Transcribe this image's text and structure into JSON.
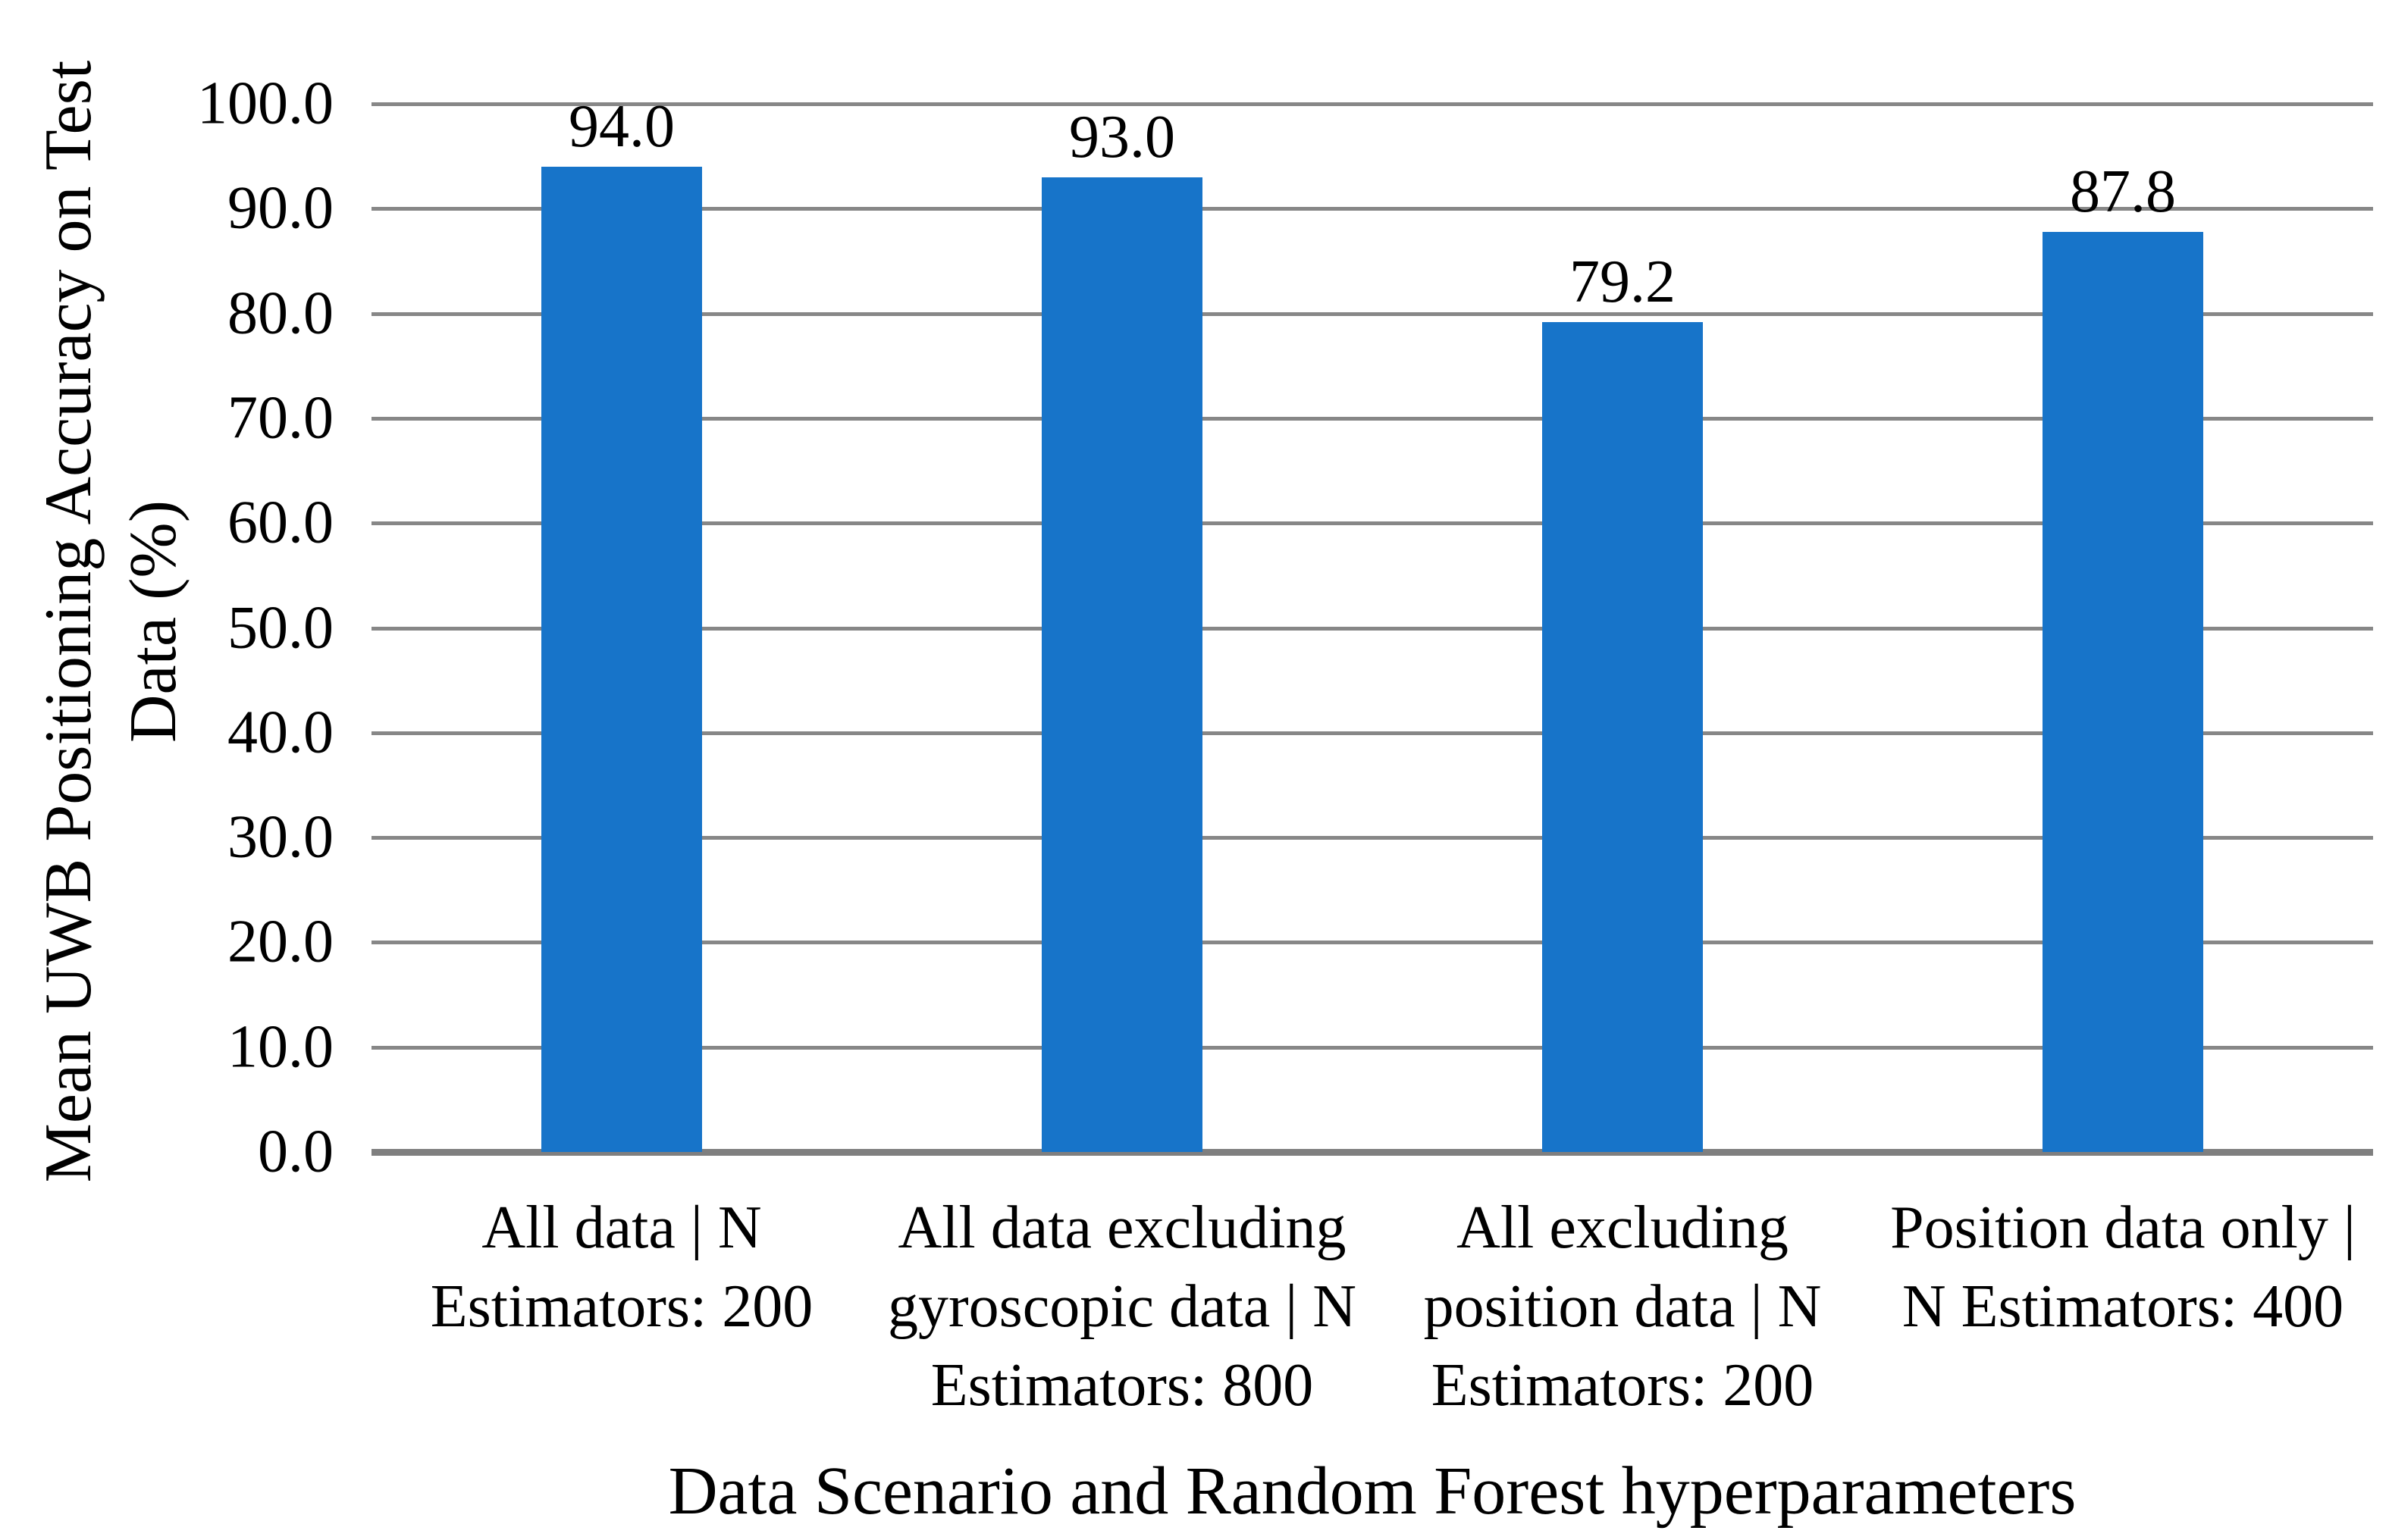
{
  "chart_data": {
    "type": "bar",
    "title": "",
    "xlabel": "Data Scenario and Random Forest hyperparameters",
    "ylabel": "Mean UWB Positioning Accuracy on Test Data (%)",
    "ylabel_lines": [
      "Mean UWB Positioning Accuracy on Test",
      "Data (%)"
    ],
    "ylim": [
      0,
      100
    ],
    "ytick_interval": 10,
    "yticks_top_to_bottom": [
      "100.0",
      "90.0",
      "80.0",
      "70.0",
      "60.0",
      "50.0",
      "40.0",
      "30.0",
      "20.0",
      "10.0",
      "0.0"
    ],
    "grid": "horizontal gridlines on",
    "legend": "none",
    "categories": [
      {
        "label": "All data | N Estimators: 200",
        "lines": [
          "All data | N",
          "Estimators: 200"
        ]
      },
      {
        "label": "All data excluding gyroscopic data | N Estimators: 800",
        "lines": [
          "All data excluding",
          "gyroscopic data | N",
          "Estimators: 800"
        ]
      },
      {
        "label": "All excluding position data | N Estimators: 200",
        "lines": [
          "All excluding",
          "position data | N",
          "Estimators: 200"
        ]
      },
      {
        "label": "Position data only | N Estimators: 400",
        "lines": [
          "Position data only |",
          "N Estimators: 400"
        ]
      }
    ],
    "values": [
      94.0,
      93.0,
      79.2,
      87.8
    ],
    "value_labels": [
      "94.0",
      "93.0",
      "79.2",
      "87.8"
    ],
    "colors": {
      "bar": "#1774C9",
      "gridline": "#878787",
      "axis_line": "#7F7F7F",
      "text": "#000000",
      "background": "#FFFFFF"
    }
  }
}
